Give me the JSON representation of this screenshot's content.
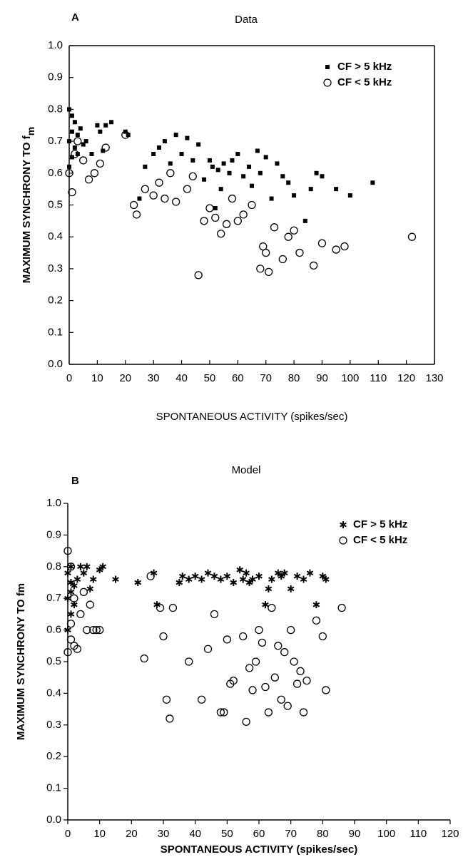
{
  "chart_data": [
    {
      "type": "scatter",
      "panel_label": "A",
      "title": "Data",
      "xlabel": "SPONTANEOUS ACTIVITY (spikes/sec)",
      "ylabel": "MAXIMUM SYNCHRONY TO f",
      "ylabel_subscript": "m",
      "xlim": [
        0,
        130
      ],
      "ylim": [
        0,
        1
      ],
      "xticks": [
        0,
        10,
        20,
        30,
        40,
        50,
        60,
        70,
        80,
        90,
        100,
        110,
        120,
        130
      ],
      "yticks": [
        {
          "value": 0,
          "label": "0.0"
        },
        0.1,
        0.2,
        0.3,
        0.4,
        0.5,
        0.6,
        0.7,
        0.8,
        0.9,
        {
          "value": 1,
          "label": "1.0"
        }
      ],
      "legend": "upper right",
      "series": [
        {
          "name": "CF > 5 kHz",
          "color": "#000000",
          "marker": "square",
          "x": [
            0,
            0,
            0,
            1,
            1,
            1,
            2,
            2,
            3,
            3,
            4,
            5,
            6,
            8,
            10,
            11,
            12,
            13,
            15,
            20,
            21,
            25,
            27,
            30,
            32,
            34,
            36,
            38,
            40,
            42,
            44,
            46,
            48,
            50,
            51,
            52,
            53,
            54,
            55,
            57,
            58,
            60,
            62,
            64,
            65,
            67,
            68,
            70,
            72,
            74,
            76,
            78,
            80,
            84,
            86,
            88,
            90,
            95,
            100,
            108
          ],
          "values": [
            0.62,
            0.7,
            0.8,
            0.65,
            0.73,
            0.78,
            0.68,
            0.76,
            0.72,
            0.66,
            0.74,
            0.69,
            0.7,
            0.66,
            0.75,
            0.73,
            0.67,
            0.75,
            0.76,
            0.73,
            0.72,
            0.52,
            0.62,
            0.66,
            0.68,
            0.7,
            0.63,
            0.72,
            0.66,
            0.71,
            0.64,
            0.69,
            0.58,
            0.64,
            0.62,
            0.49,
            0.61,
            0.55,
            0.63,
            0.6,
            0.64,
            0.66,
            0.59,
            0.62,
            0.56,
            0.67,
            0.6,
            0.65,
            0.52,
            0.63,
            0.59,
            0.57,
            0.53,
            0.45,
            0.55,
            0.6,
            0.59,
            0.55,
            0.53,
            0.57
          ]
        },
        {
          "name": "CF < 5 kHz",
          "color": "#000000",
          "marker": "circle",
          "x": [
            0,
            1,
            2,
            3,
            5,
            7,
            9,
            11,
            13,
            20,
            23,
            24,
            27,
            30,
            32,
            34,
            36,
            38,
            42,
            44,
            46,
            48,
            50,
            52,
            54,
            56,
            58,
            60,
            62,
            65,
            68,
            69,
            70,
            71,
            73,
            76,
            78,
            80,
            82,
            87,
            90,
            95,
            98,
            122
          ],
          "values": [
            0.6,
            0.54,
            0.66,
            0.7,
            0.64,
            0.58,
            0.6,
            0.63,
            0.68,
            0.72,
            0.5,
            0.47,
            0.55,
            0.53,
            0.57,
            0.52,
            0.6,
            0.51,
            0.55,
            0.59,
            0.28,
            0.45,
            0.49,
            0.46,
            0.41,
            0.44,
            0.52,
            0.45,
            0.47,
            0.5,
            0.3,
            0.37,
            0.35,
            0.29,
            0.43,
            0.33,
            0.4,
            0.42,
            0.35,
            0.31,
            0.38,
            0.36,
            0.37,
            0.4
          ]
        }
      ]
    },
    {
      "type": "scatter",
      "panel_label": "B",
      "title": "Model",
      "xlabel": "SPONTANEOUS ACTIVITY (spikes/sec)",
      "ylabel": "MAXIMUM SYNCHRONY TO fm",
      "xlim": [
        0,
        120
      ],
      "ylim": [
        0,
        1
      ],
      "xticks": [
        0,
        10,
        20,
        30,
        40,
        50,
        60,
        70,
        80,
        90,
        100,
        110,
        120
      ],
      "yticks": [
        {
          "value": 0,
          "label": "0.0"
        },
        0.1,
        0.2,
        0.3,
        0.4,
        0.5,
        0.6,
        0.7,
        0.8,
        0.9,
        {
          "value": 1,
          "label": "1.0"
        }
      ],
      "legend": "upper right",
      "series": [
        {
          "name": "CF > 5 kHz",
          "color": "#000000",
          "marker": "star",
          "x": [
            0,
            0,
            0,
            1,
            1,
            1,
            1,
            2,
            2,
            3,
            4,
            5,
            6,
            7,
            8,
            10,
            11,
            15,
            22,
            27,
            28,
            35,
            36,
            38,
            40,
            42,
            44,
            46,
            48,
            50,
            52,
            54,
            55,
            56,
            57,
            58,
            60,
            62,
            63,
            64,
            66,
            67,
            68,
            70,
            72,
            74,
            76,
            78,
            80,
            81
          ],
          "values": [
            0.6,
            0.7,
            0.78,
            0.65,
            0.72,
            0.75,
            0.8,
            0.68,
            0.74,
            0.76,
            0.8,
            0.78,
            0.8,
            0.73,
            0.76,
            0.79,
            0.8,
            0.76,
            0.75,
            0.78,
            0.68,
            0.75,
            0.77,
            0.76,
            0.77,
            0.76,
            0.78,
            0.77,
            0.76,
            0.77,
            0.75,
            0.79,
            0.76,
            0.78,
            0.75,
            0.76,
            0.77,
            0.68,
            0.73,
            0.76,
            0.78,
            0.77,
            0.78,
            0.73,
            0.77,
            0.76,
            0.78,
            0.68,
            0.77,
            0.76
          ]
        },
        {
          "name": "CF < 5 kHz",
          "color": "#000000",
          "marker": "circle",
          "x": [
            0,
            0,
            1,
            1,
            1,
            2,
            2,
            3,
            4,
            5,
            6,
            7,
            8,
            9,
            10,
            24,
            26,
            29,
            30,
            31,
            32,
            33,
            38,
            42,
            44,
            46,
            48,
            49,
            50,
            51,
            52,
            55,
            56,
            57,
            58,
            59,
            60,
            61,
            62,
            63,
            64,
            65,
            66,
            67,
            68,
            69,
            70,
            71,
            72,
            73,
            74,
            75,
            78,
            80,
            81,
            86
          ],
          "values": [
            0.85,
            0.53,
            0.62,
            0.8,
            0.57,
            0.7,
            0.55,
            0.54,
            0.65,
            0.72,
            0.6,
            0.68,
            0.6,
            0.6,
            0.6,
            0.51,
            0.77,
            0.67,
            0.58,
            0.38,
            0.32,
            0.67,
            0.5,
            0.38,
            0.54,
            0.65,
            0.34,
            0.34,
            0.57,
            0.43,
            0.44,
            0.58,
            0.31,
            0.48,
            0.41,
            0.5,
            0.6,
            0.56,
            0.42,
            0.34,
            0.67,
            0.45,
            0.55,
            0.38,
            0.53,
            0.36,
            0.6,
            0.5,
            0.43,
            0.47,
            0.34,
            0.44,
            0.63,
            0.58,
            0.41,
            0.67
          ]
        }
      ]
    }
  ]
}
